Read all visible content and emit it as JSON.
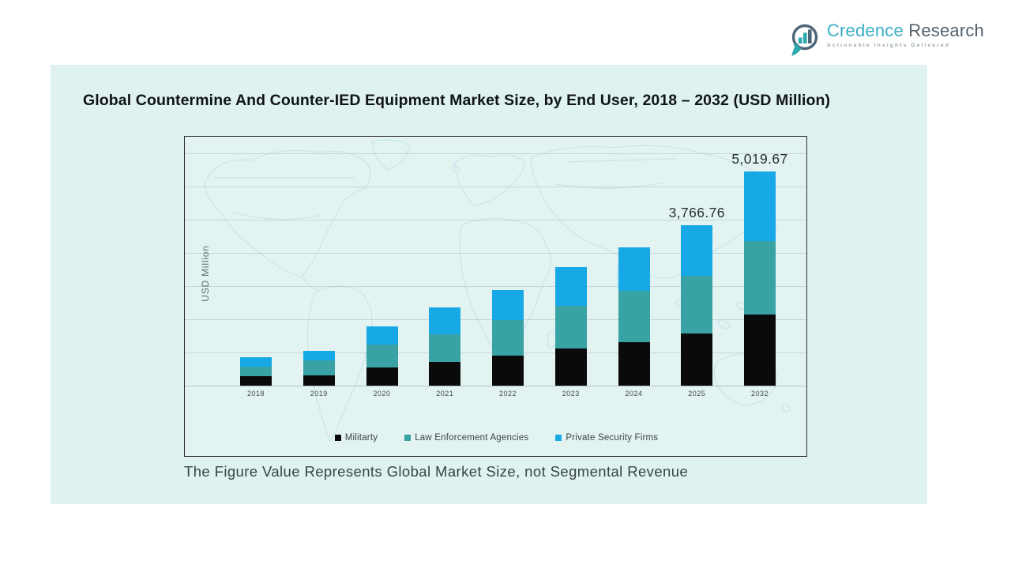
{
  "logo": {
    "brand_primary": "Credence",
    "brand_secondary": "Research",
    "tagline": "Actionable Insights Delivered",
    "primary_color": "#3aaec6",
    "secondary_color": "#52616d"
  },
  "title": "Global Countermine And Counter-IED Equipment Market Size, by End User, 2018 – 2032 (USD Million)",
  "footnote": "The Figure Value Represents Global Market Size, not Segmental Revenue",
  "chart_data": {
    "type": "bar",
    "stacked": true,
    "title": "Global Countermine And Counter-IED Equipment Market Size, by End User, 2018 – 2032 (USD Million)",
    "xlabel": "",
    "ylabel": "USD Million",
    "ylim": [
      0,
      5250
    ],
    "grid": true,
    "legend_position": "bottom",
    "categories": [
      "2018",
      "2019",
      "2020",
      "2021",
      "2022",
      "2023",
      "2024",
      "2025",
      "2032"
    ],
    "series": [
      {
        "name": "Militarty",
        "color": "#0a0a0a",
        "values": [
          214,
          250,
          428,
          553,
          713,
          874,
          1016,
          1230,
          1666
        ]
      },
      {
        "name": "Law Enforcement Agencies",
        "color": "#38a2a4",
        "values": [
          232,
          339,
          535,
          660,
          820,
          998,
          1212,
          1337,
          1729
        ]
      },
      {
        "name": "Private Security Firms",
        "color": "#17a8e6",
        "values": [
          214,
          232,
          428,
          624,
          713,
          909,
          1016,
          1199.76,
          1624.67
        ]
      }
    ],
    "totals": [
      660,
      821,
      1391,
      1837,
      2246,
      2781,
      3244,
      3766.76,
      5019.67
    ],
    "data_labels": [
      "",
      "",
      "",
      "",
      "",
      "",
      "",
      "3,766.76",
      "5,019.67"
    ],
    "values_note": "Only 2025 and 2032 totals are labeled on the chart; other values estimated from bar heights"
  }
}
